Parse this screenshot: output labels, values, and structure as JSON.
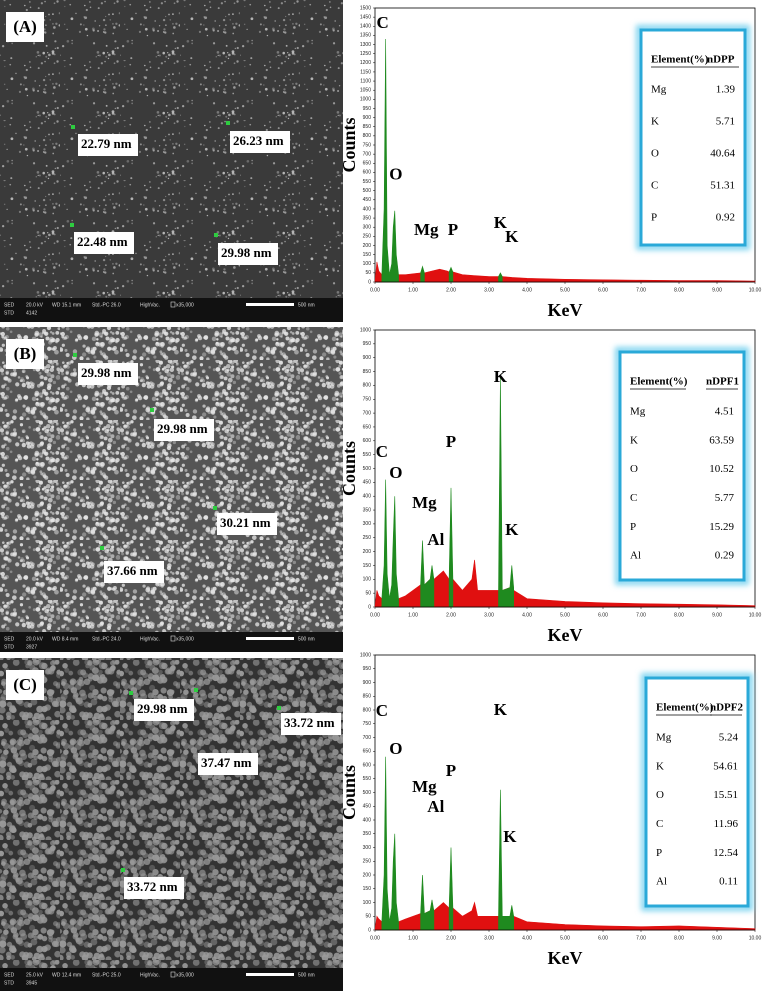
{
  "images": [
    {
      "label": "(A)",
      "measurements": [
        "22.79 nm",
        "26.23 nm",
        "22.48 nm",
        "29.98 nm"
      ],
      "footer": [
        "SED",
        "20.0 kV",
        "WD 15.1 mm",
        "Std.-PC 26.0",
        "HighVac.",
        "x35,000",
        "500 nm"
      ],
      "footer_id": [
        "STD",
        "4142"
      ]
    },
    {
      "label": "(B)",
      "measurements": [
        "29.98 nm",
        "29.98 nm",
        "30.21 nm",
        "37.66 nm"
      ],
      "footer": [
        "SED",
        "20.0 kV",
        "WD 8.4 mm",
        "Std.-PC 24.0",
        "HighVac.",
        "x35,000",
        "500 nm"
      ],
      "footer_id": [
        "STD",
        "3927"
      ]
    },
    {
      "label": "(C)",
      "measurements": [
        "29.98 nm",
        "33.72 nm",
        "37.47 nm",
        "33.72 nm"
      ],
      "footer": [
        "SED",
        "25.0 kV",
        "WD 12.4 mm",
        "Std.-PC 25.0",
        "HighVac.",
        "x35,000",
        "500 nm"
      ],
      "footer_id": [
        "STD",
        "3945"
      ]
    }
  ],
  "chart_data": [
    {
      "type": "area",
      "x_label": "KeV",
      "y_label": "Counts",
      "x": [
        0,
        0.05,
        0.1,
        0.18,
        0.24,
        0.28,
        0.32,
        0.38,
        0.44,
        0.48,
        0.52,
        0.56,
        0.62,
        0.8,
        1.0,
        1.2,
        1.25,
        1.3,
        1.5,
        1.7,
        1.9,
        1.95,
        2.0,
        2.05,
        2.3,
        2.6,
        3.0,
        3.25,
        3.3,
        3.35,
        3.6,
        4.0,
        5.0,
        6.0,
        7.0,
        8.0,
        9.0,
        10.0
      ],
      "series": [
        {
          "color": "#e01010",
          "values": [
            0,
            110,
            60,
            40,
            40,
            40,
            40,
            40,
            40,
            40,
            40,
            40,
            40,
            40,
            45,
            50,
            50,
            50,
            60,
            70,
            60,
            55,
            55,
            55,
            40,
            35,
            30,
            30,
            30,
            30,
            25,
            20,
            15,
            12,
            10,
            8,
            8,
            5
          ]
        },
        {
          "color": "#1f8a1f",
          "values": [
            null,
            null,
            null,
            40,
            400,
            1330,
            200,
            40,
            100,
            300,
            390,
            150,
            40,
            null,
            null,
            50,
            85,
            50,
            null,
            null,
            null,
            55,
            80,
            55,
            null,
            null,
            null,
            30,
            50,
            30,
            null,
            null,
            null,
            null,
            null,
            null,
            null,
            null
          ]
        }
      ],
      "xlim": [
        0,
        10
      ],
      "ylim": [
        0,
        1500
      ],
      "xticks": [
        {
          "value": 0,
          "label": "0.00"
        },
        {
          "value": 1,
          "label": "1.00"
        },
        {
          "value": 2,
          "label": "2.00"
        },
        {
          "value": 3,
          "label": "3.00"
        },
        {
          "value": 4,
          "label": "4.00"
        },
        {
          "value": 5,
          "label": "5.00"
        },
        {
          "value": 6,
          "label": "6.00"
        },
        {
          "value": 7,
          "label": "7.00"
        },
        {
          "value": 8,
          "label": "8.00"
        },
        {
          "value": 9,
          "label": "9.00"
        },
        {
          "value": 10,
          "label": "10.00"
        }
      ],
      "yticks": [
        0,
        50,
        100,
        150,
        200,
        250,
        300,
        350,
        400,
        450,
        500,
        550,
        600,
        650,
        700,
        750,
        800,
        850,
        900,
        950,
        1000,
        1050,
        1100,
        1150,
        1200,
        1250,
        1300,
        1350,
        1400,
        1450,
        1500
      ],
      "annotations": [
        {
          "text": "C",
          "x": 0.2,
          "y": 1390
        },
        {
          "text": "O",
          "x": 0.55,
          "y": 560
        },
        {
          "text": "Mg",
          "x": 1.35,
          "y": 257
        },
        {
          "text": "P",
          "x": 2.05,
          "y": 257
        },
        {
          "text": "K",
          "x": 3.3,
          "y": 295
        },
        {
          "text": "K",
          "x": 3.6,
          "y": 218
        }
      ],
      "table": {
        "header": [
          "Element(%)",
          "nDPP"
        ],
        "rows": [
          [
            "Mg",
            "1.39"
          ],
          [
            "K",
            "5.71"
          ],
          [
            "O",
            "40.64"
          ],
          [
            "C",
            "51.31"
          ],
          [
            "P",
            "0.92"
          ]
        ]
      }
    },
    {
      "type": "area",
      "x_label": "KeV",
      "y_label": "Counts",
      "x": [
        0,
        0.05,
        0.1,
        0.18,
        0.24,
        0.28,
        0.32,
        0.38,
        0.44,
        0.48,
        0.52,
        0.56,
        0.62,
        0.8,
        1.0,
        1.2,
        1.25,
        1.3,
        1.45,
        1.5,
        1.55,
        1.8,
        1.95,
        2.0,
        2.05,
        2.3,
        2.55,
        2.62,
        2.7,
        3.0,
        3.25,
        3.3,
        3.35,
        3.55,
        3.6,
        3.65,
        4.0,
        5.0,
        6.0,
        7.0,
        8.0,
        9.0,
        10.0
      ],
      "series": [
        {
          "color": "#e01010",
          "values": [
            0,
            60,
            40,
            30,
            30,
            30,
            30,
            30,
            30,
            30,
            30,
            30,
            30,
            40,
            60,
            80,
            80,
            80,
            100,
            110,
            100,
            130,
            100,
            100,
            100,
            60,
            100,
            170,
            60,
            60,
            60,
            60,
            60,
            70,
            70,
            60,
            30,
            20,
            15,
            12,
            10,
            8,
            5
          ]
        },
        {
          "color": "#1f8a1f",
          "values": [
            null,
            null,
            null,
            30,
            150,
            460,
            120,
            30,
            80,
            250,
            400,
            120,
            30,
            null,
            null,
            80,
            240,
            80,
            100,
            150,
            100,
            null,
            100,
            430,
            100,
            null,
            null,
            null,
            null,
            null,
            60,
            830,
            60,
            70,
            150,
            70,
            null,
            null,
            null,
            null,
            null,
            null,
            null
          ]
        }
      ],
      "xlim": [
        0,
        10
      ],
      "ylim": [
        0,
        1000
      ],
      "xticks": [
        {
          "value": 0,
          "label": "0.00"
        },
        {
          "value": 1,
          "label": "1.00"
        },
        {
          "value": 2,
          "label": "2.00"
        },
        {
          "value": 3,
          "label": "3.00"
        },
        {
          "value": 4,
          "label": "4.00"
        },
        {
          "value": 5,
          "label": "5.00"
        },
        {
          "value": 6,
          "label": "6.00"
        },
        {
          "value": 7,
          "label": "7.00"
        },
        {
          "value": 8,
          "label": "8.00"
        },
        {
          "value": 9,
          "label": "9.00"
        },
        {
          "value": 10,
          "label": "10.00"
        }
      ],
      "yticks": [
        0,
        50,
        100,
        150,
        200,
        250,
        300,
        350,
        400,
        450,
        500,
        550,
        600,
        650,
        700,
        750,
        800,
        850,
        900,
        950,
        1000
      ],
      "annotations": [
        {
          "text": "C",
          "x": 0.18,
          "y": 541
        },
        {
          "text": "O",
          "x": 0.55,
          "y": 466
        },
        {
          "text": "Mg",
          "x": 1.3,
          "y": 357
        },
        {
          "text": "Al",
          "x": 1.6,
          "y": 224
        },
        {
          "text": "P",
          "x": 2.0,
          "y": 578
        },
        {
          "text": "K",
          "x": 3.3,
          "y": 812
        },
        {
          "text": "K",
          "x": 3.6,
          "y": 260
        }
      ],
      "table": {
        "header": [
          "Element(%)",
          "nDPF1"
        ],
        "rows": [
          [
            "Mg",
            "4.51"
          ],
          [
            "K",
            "63.59"
          ],
          [
            "O",
            "10.52"
          ],
          [
            "C",
            "5.77"
          ],
          [
            "P",
            "15.29"
          ],
          [
            "Al",
            "0.29"
          ]
        ]
      }
    },
    {
      "type": "area",
      "x_label": "KeV",
      "y_label": "Counts",
      "x": [
        0,
        0.05,
        0.1,
        0.18,
        0.24,
        0.28,
        0.32,
        0.38,
        0.44,
        0.48,
        0.52,
        0.56,
        0.62,
        0.8,
        1.0,
        1.2,
        1.25,
        1.3,
        1.45,
        1.5,
        1.55,
        1.8,
        1.95,
        2.0,
        2.05,
        2.3,
        2.55,
        2.62,
        2.7,
        3.0,
        3.25,
        3.3,
        3.35,
        3.55,
        3.6,
        3.65,
        4.0,
        5.0,
        6.0,
        7.0,
        8.0,
        9.0,
        10.0
      ],
      "series": [
        {
          "color": "#e01010",
          "values": [
            0,
            50,
            40,
            30,
            30,
            30,
            30,
            30,
            30,
            30,
            30,
            30,
            30,
            40,
            50,
            60,
            60,
            60,
            70,
            80,
            70,
            100,
            80,
            80,
            80,
            50,
            70,
            100,
            50,
            50,
            50,
            50,
            50,
            50,
            50,
            50,
            30,
            20,
            15,
            12,
            15,
            10,
            5
          ]
        },
        {
          "color": "#1f8a1f",
          "values": [
            null,
            null,
            null,
            30,
            200,
            630,
            150,
            30,
            80,
            250,
            350,
            100,
            30,
            null,
            null,
            60,
            200,
            60,
            70,
            110,
            70,
            null,
            80,
            300,
            80,
            null,
            null,
            null,
            null,
            null,
            50,
            510,
            50,
            50,
            90,
            50,
            null,
            null,
            null,
            null,
            null,
            null,
            null
          ]
        }
      ],
      "xlim": [
        0,
        10
      ],
      "ylim": [
        0,
        1000
      ],
      "xticks": [
        {
          "value": 0,
          "label": "0.00"
        },
        {
          "value": 1,
          "label": "1.00"
        },
        {
          "value": 2,
          "label": "2.00"
        },
        {
          "value": 3,
          "label": "3.00"
        },
        {
          "value": 4,
          "label": "4.00"
        },
        {
          "value": 5,
          "label": "5.00"
        },
        {
          "value": 6,
          "label": "6.00"
        },
        {
          "value": 7,
          "label": "7.00"
        },
        {
          "value": 8,
          "label": "8.00"
        },
        {
          "value": 9,
          "label": "9.00"
        },
        {
          "value": 10,
          "label": "10.00"
        }
      ],
      "yticks": [
        0,
        50,
        100,
        150,
        200,
        250,
        300,
        350,
        400,
        450,
        500,
        550,
        600,
        650,
        700,
        750,
        800,
        850,
        900,
        950,
        1000
      ],
      "annotations": [
        {
          "text": "C",
          "x": 0.18,
          "y": 778
        },
        {
          "text": "O",
          "x": 0.55,
          "y": 640
        },
        {
          "text": "Mg",
          "x": 1.3,
          "y": 502
        },
        {
          "text": "Al",
          "x": 1.6,
          "y": 429
        },
        {
          "text": "P",
          "x": 2.0,
          "y": 560
        },
        {
          "text": "K",
          "x": 3.3,
          "y": 782
        },
        {
          "text": "K",
          "x": 3.55,
          "y": 320
        }
      ],
      "table": {
        "header": [
          "Element(%)",
          "nDPF2"
        ],
        "rows": [
          [
            "Mg",
            "5.24"
          ],
          [
            "K",
            "54.61"
          ],
          [
            "O",
            "15.51"
          ],
          [
            "C",
            "11.96"
          ],
          [
            "P",
            "12.54"
          ],
          [
            "Al",
            "0.11"
          ]
        ]
      }
    }
  ]
}
